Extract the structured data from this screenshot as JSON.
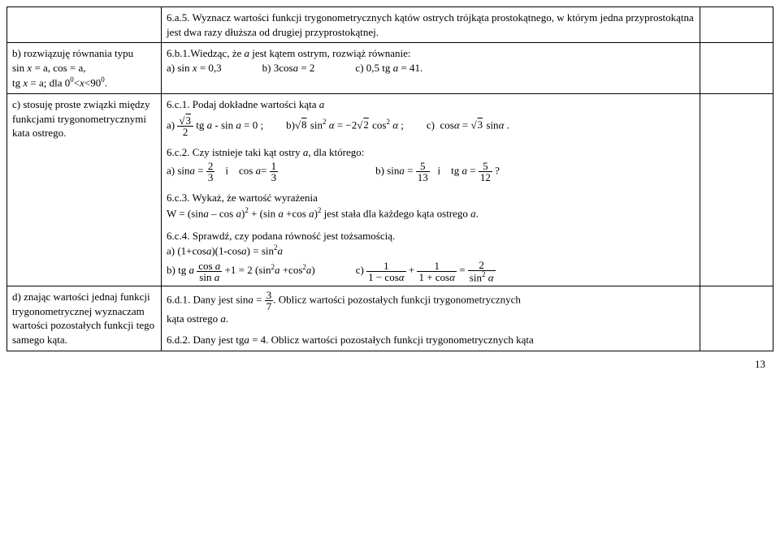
{
  "row1": {
    "left": "",
    "mid": "6.a.5. Wyznacz wartości funkcji trygonometrycznych kątów ostrych trójkąta prostokątnego, w którym jedna przyprostokątna jest dwa razy dłuższa od drugiej przyprostokątnej.",
    "right": ""
  },
  "row2": {
    "b_left_l1": "b) rozwiązuję równania typu",
    "b_left_l2_html": "sin <i>x</i> = a, cos = a,",
    "b_left_l3_html": "tg <i>x</i> = a; dla 0<sup>0</sup>&lt;<i>x</i>&lt;90<sup>0</sup>.",
    "b_6b1_html": "6.b.1.Wiedząc, że <i>a</i> jest kątem ostrym, rozwiąż równanie:",
    "b_6b1_opts_html": "a) sin <i>x</i> = 0,3<span class=\"sp2\"></span>b) 3cos<i>a</i> = 2<span class=\"sp2\"></span>c) 0,5 tg <i>a</i> = 41."
  },
  "row3": {
    "c_left_l1": "c) stosuję proste związki między funkcjami trygonometrycznymi kata ostrego.",
    "c_6c1_title_html": "6.c.1. Podaj dokładne wartości kąta <i>a</i>",
    "c_6c1_expr_html": "a) <span class=\"frac\"><span class=\"num\">√<span class=\"sqrt\">3</span></span><span class=\"den\">2</span></span> tg <i>a</i> - sin <i>a</i> = 0 ;<span class=\"sp\"></span>b)√<span class=\"sqrt\">8</span> sin<sup>2</sup> <i>α</i> = −2√<span class=\"sqrt\">2</span> cos<sup>2</sup> <i>α</i> ;<span class=\"sp\"></span>c)&nbsp; cos<i>α</i> = √<span class=\"sqrt\">3</span> sin<i>α</i> .",
    "c_6c2_title_html": "6.c.2. Czy istnieje taki kąt ostry <i>a</i>, dla którego:",
    "c_6c2_expr_html": "a) sin<i>a</i> = <span class=\"frac\"><span class=\"num\">2</span><span class=\"den\">3</span></span>&nbsp;&nbsp;&nbsp; i &nbsp;&nbsp; cos <i>a</i>= <span class=\"frac\"><span class=\"num\">1</span><span class=\"den\">3</span></span><span style=\"display:inline-block;width:120px;\"></span>b) sin<i>a</i> = <span class=\"frac\"><span class=\"num\">5</span><span class=\"den\">13</span></span>&nbsp;&nbsp; i &nbsp;&nbsp; tg <i>a</i> = <span class=\"frac\"><span class=\"num\">5</span><span class=\"den\">12</span></span> ?",
    "c_6c3_title": "6.c.3. Wykaż, że wartość wyrażenia",
    "c_6c3_expr_html": "W = (sin<i>a</i> – cos <i>a</i>)<sup>2</sup> + (sin <i>a</i> +cos <i>a</i>)<sup>2</sup> jest stała dla każdego kąta ostrego <i>a</i>.",
    "c_6c4_title": "6.c.4. Sprawdź, czy podana równość jest tożsamością.",
    "c_6c4_a_html": "a) (1+cos<i>a</i>)(1-cos<i>a</i>) = sin<sup>2</sup><i>a</i>",
    "c_6c4_b_html": "b) tg <i>a</i> <span class=\"frac\"><span class=\"num\">cos <i>a</i></span><span class=\"den\">sin <i>a</i></span></span> +1 = 2 (sin<sup>2</sup><i>a</i> +cos<sup>2</sup><i>a</i>)<span class=\"sp2\"></span>c) <span class=\"frac\"><span class=\"num\">1</span><span class=\"den\">1 − cos<i>α</i></span></span> + <span class=\"frac\"><span class=\"num\">1</span><span class=\"den\">1 + cos<i>α</i></span></span> = <span class=\"frac\"><span class=\"num\">2</span><span class=\"den\">sin<sup>2</sup> <i>α</i></span></span>"
  },
  "row4": {
    "d_left": "d) znając wartości jednaj funkcji trygonometrycznej wyznaczam wartości pozostałych funkcji tego samego kąta.",
    "d_6d1_html": "6.d.1. Dany jest sin<i>a</i> = <span class=\"frac\"><span class=\"num\">3</span><span class=\"den\">7</span></span>. Oblicz wartości pozostałych funkcji trygonometrycznych",
    "d_6d1_l2_html": "kąta ostrego <i>a</i>.",
    "d_6d2_html": "6.d.2. Dany jest tg<i>a</i> = 4. Oblicz wartości pozostałych funkcji trygonometrycznych kąta"
  },
  "pagenum": "13"
}
